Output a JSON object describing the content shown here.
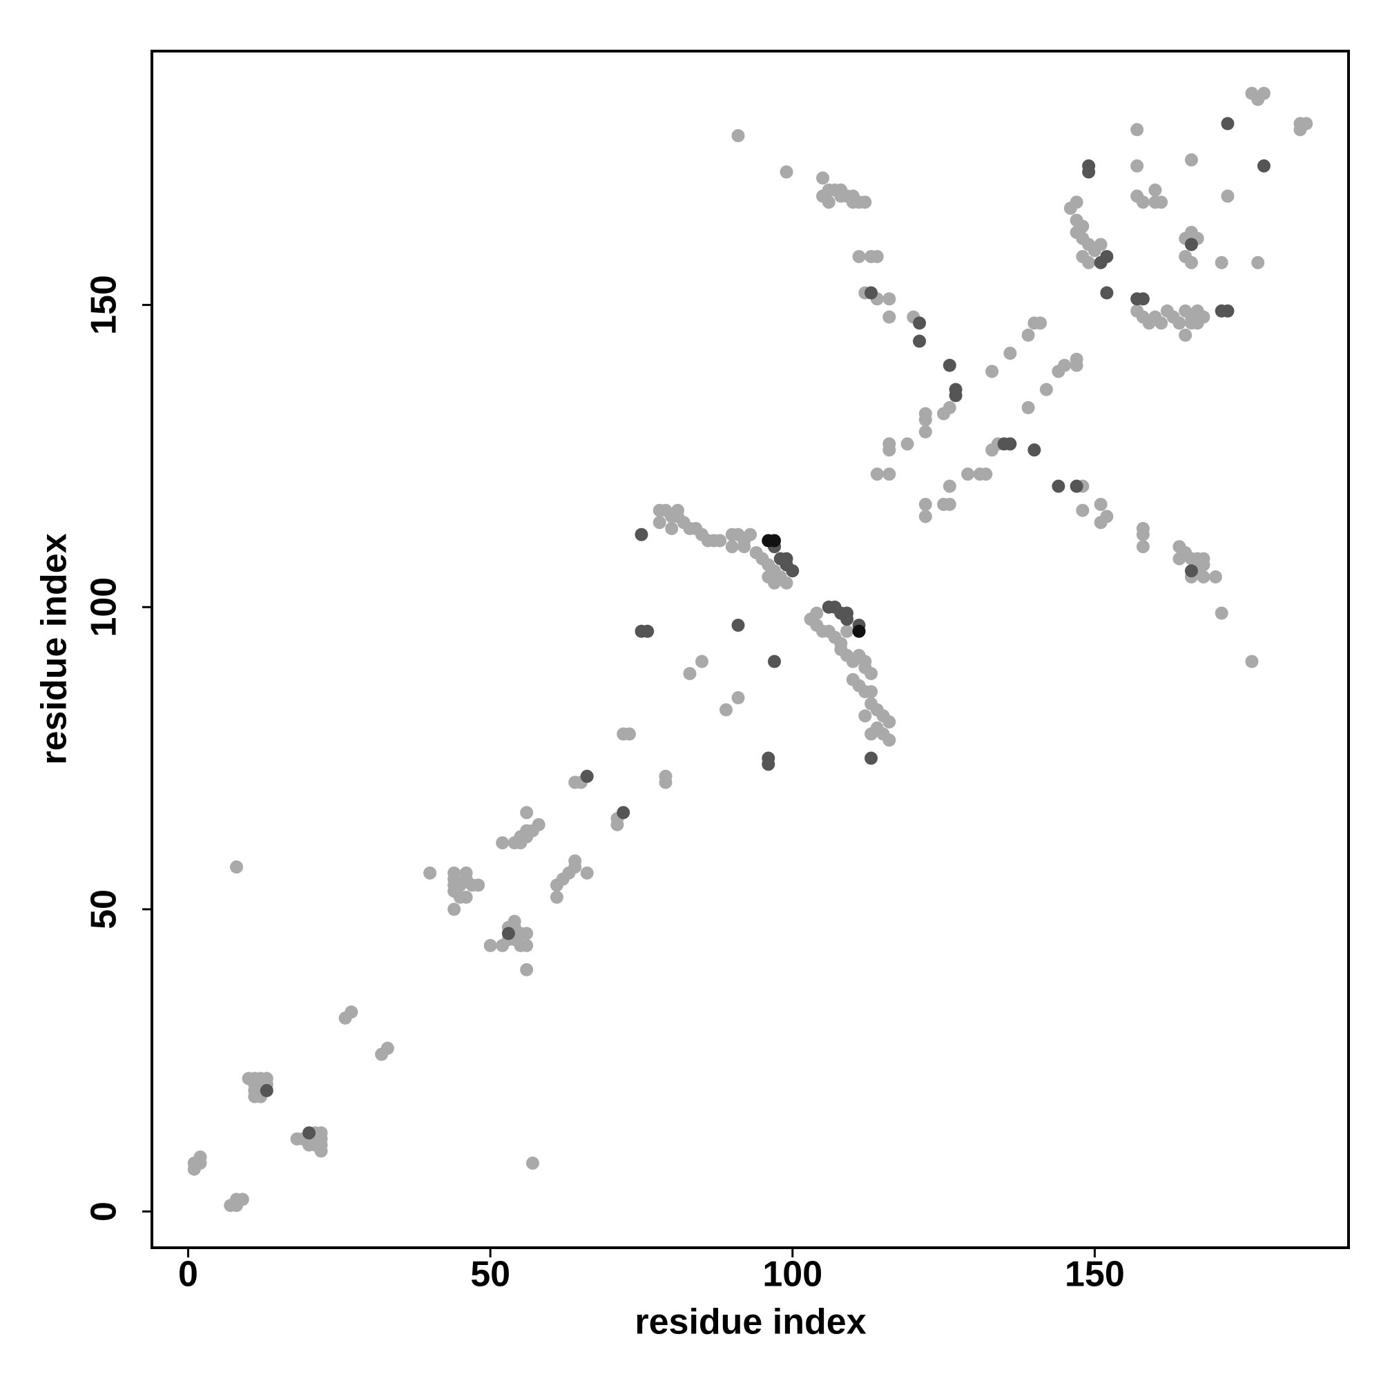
{
  "chart_data": {
    "type": "scatter",
    "xlabel": "residue index",
    "ylabel": "residue index",
    "xlim": [
      -6,
      192
    ],
    "ylim": [
      -6,
      192
    ],
    "xticks": [
      0,
      50,
      100,
      150
    ],
    "yticks": [
      0,
      50,
      100,
      150
    ],
    "series": [
      {
        "color": "#a9a9a9",
        "x": [
          1,
          1,
          2,
          2,
          7,
          8,
          8,
          9,
          8,
          10,
          11,
          12,
          13,
          11,
          12,
          13,
          11,
          12,
          12,
          11,
          18,
          19,
          20,
          21,
          22,
          22,
          22,
          21,
          20,
          22,
          26,
          27,
          32,
          33,
          40,
          44,
          44,
          44,
          44,
          45,
          46,
          46,
          46,
          47,
          48,
          44,
          45,
          50,
          52,
          53,
          54,
          55,
          56,
          53,
          54,
          55,
          56,
          54,
          56,
          52,
          54,
          55,
          55,
          56,
          56,
          57,
          58,
          56,
          57,
          61,
          61,
          62,
          63,
          64,
          64,
          66,
          64,
          65,
          71,
          71,
          72,
          73,
          79,
          79,
          78,
          79,
          80,
          81,
          81,
          82,
          83,
          84,
          85,
          86,
          87,
          88,
          90,
          91,
          92,
          93,
          90,
          92,
          94,
          95,
          96,
          97,
          98,
          99,
          96,
          97,
          78,
          80,
          83,
          85,
          89,
          91,
          103,
          104,
          104,
          105,
          106,
          107,
          108,
          108,
          109,
          110,
          111,
          112,
          112,
          113,
          110,
          111,
          112,
          113,
          113,
          114,
          115,
          116,
          114,
          115,
          116,
          113,
          112,
          109,
          91,
          99,
          105,
          105,
          106,
          107,
          108,
          109,
          110,
          111,
          112,
          108,
          110,
          106,
          111,
          113,
          114,
          112,
          114,
          116,
          116,
          120,
          116,
          116,
          114,
          116,
          119,
          122,
          122,
          122,
          125,
          126,
          122,
          122,
          125,
          126,
          126,
          129,
          131,
          132,
          133,
          134,
          133,
          136,
          139,
          139,
          140,
          141,
          142,
          144,
          145,
          147,
          147,
          146,
          147,
          147,
          148,
          147,
          148,
          149,
          148,
          149,
          150,
          151,
          148,
          148,
          151,
          152,
          151,
          157,
          157,
          157,
          158,
          160,
          161,
          160,
          157,
          158,
          159,
          160,
          161,
          162,
          163,
          164,
          165,
          165,
          166,
          167,
          166,
          167,
          168,
          158,
          158,
          158,
          164,
          164,
          165,
          166,
          167,
          168,
          168,
          167,
          166,
          168,
          170,
          171,
          176,
          166,
          165,
          166,
          167,
          165,
          166,
          171,
          172,
          177,
          176,
          177,
          178,
          184,
          184,
          185
        ],
        "values": [
          7,
          8,
          8,
          9,
          1,
          1,
          2,
          2,
          57,
          22,
          22,
          22,
          22,
          21,
          21,
          21,
          20,
          20,
          19,
          19,
          12,
          12,
          11,
          11,
          11,
          12,
          13,
          13,
          12,
          10,
          32,
          33,
          26,
          27,
          56,
          56,
          55,
          54,
          53,
          52,
          52,
          56,
          55,
          54,
          54,
          50,
          54,
          44,
          44,
          45,
          45,
          44,
          44,
          47,
          47,
          46,
          46,
          48,
          40,
          61,
          61,
          61,
          62,
          62,
          63,
          63,
          64,
          66,
          8,
          52,
          54,
          55,
          56,
          57,
          58,
          56,
          71,
          71,
          64,
          65,
          79,
          79,
          72,
          71,
          116,
          116,
          115,
          115,
          116,
          114,
          113,
          113,
          112,
          111,
          111,
          111,
          112,
          112,
          111,
          112,
          110,
          110,
          109,
          108,
          107,
          106,
          105,
          104,
          105,
          104,
          114,
          113,
          89,
          91,
          83,
          85,
          98,
          99,
          97,
          96,
          96,
          95,
          94,
          93,
          92,
          91,
          92,
          91,
          90,
          89,
          88,
          87,
          86,
          86,
          84,
          83,
          82,
          81,
          80,
          79,
          78,
          79,
          82,
          96,
          178,
          172,
          171,
          168,
          169,
          169,
          168,
          168,
          167,
          167,
          167,
          169,
          168,
          167,
          158,
          158,
          158,
          152,
          151,
          151,
          148,
          148,
          127,
          126,
          122,
          122,
          127,
          132,
          131,
          129,
          132,
          133,
          117,
          115,
          117,
          117,
          120,
          122,
          122,
          122,
          126,
          127,
          139,
          142,
          133,
          145,
          147,
          147,
          136,
          139,
          140,
          140,
          141,
          166,
          167,
          164,
          163,
          162,
          161,
          160,
          158,
          157,
          159,
          160,
          116,
          120,
          117,
          115,
          114,
          179,
          173,
          168,
          167,
          169,
          167,
          167,
          149,
          148,
          147,
          148,
          147,
          149,
          148,
          147,
          145,
          149,
          148,
          149,
          147,
          147,
          148,
          113,
          112,
          110,
          110,
          108,
          109,
          108,
          108,
          108,
          107,
          106,
          105,
          105,
          105,
          99,
          91,
          174,
          161,
          162,
          161,
          158,
          157,
          157,
          168,
          157,
          185,
          184,
          185,
          179,
          180,
          180
        ]
      },
      {
        "color": "#555555",
        "x": [
          75,
          75,
          76,
          91,
          97,
          96,
          96,
          66,
          72,
          106,
          107,
          108,
          109,
          109,
          111,
          99,
          100,
          98,
          99,
          97,
          113,
          113,
          121,
          121,
          126,
          127,
          127,
          135,
          136,
          140,
          144,
          147,
          149,
          149,
          152,
          151,
          152,
          172,
          171,
          172,
          178,
          166,
          166,
          158,
          157,
          13,
          20,
          53
        ],
        "values": [
          112,
          96,
          96,
          97,
          91,
          75,
          74,
          72,
          66,
          100,
          100,
          99,
          98,
          99,
          97,
          107,
          106,
          108,
          108,
          110,
          75,
          152,
          147,
          144,
          140,
          136,
          135,
          127,
          127,
          126,
          120,
          120,
          173,
          172,
          158,
          157,
          152,
          149,
          149,
          180,
          173,
          160,
          106,
          151,
          151,
          20,
          13,
          46
        ]
      },
      {
        "color": "#111111",
        "x": [
          96,
          97,
          111
        ],
        "values": [
          111,
          111,
          96
        ]
      }
    ]
  }
}
